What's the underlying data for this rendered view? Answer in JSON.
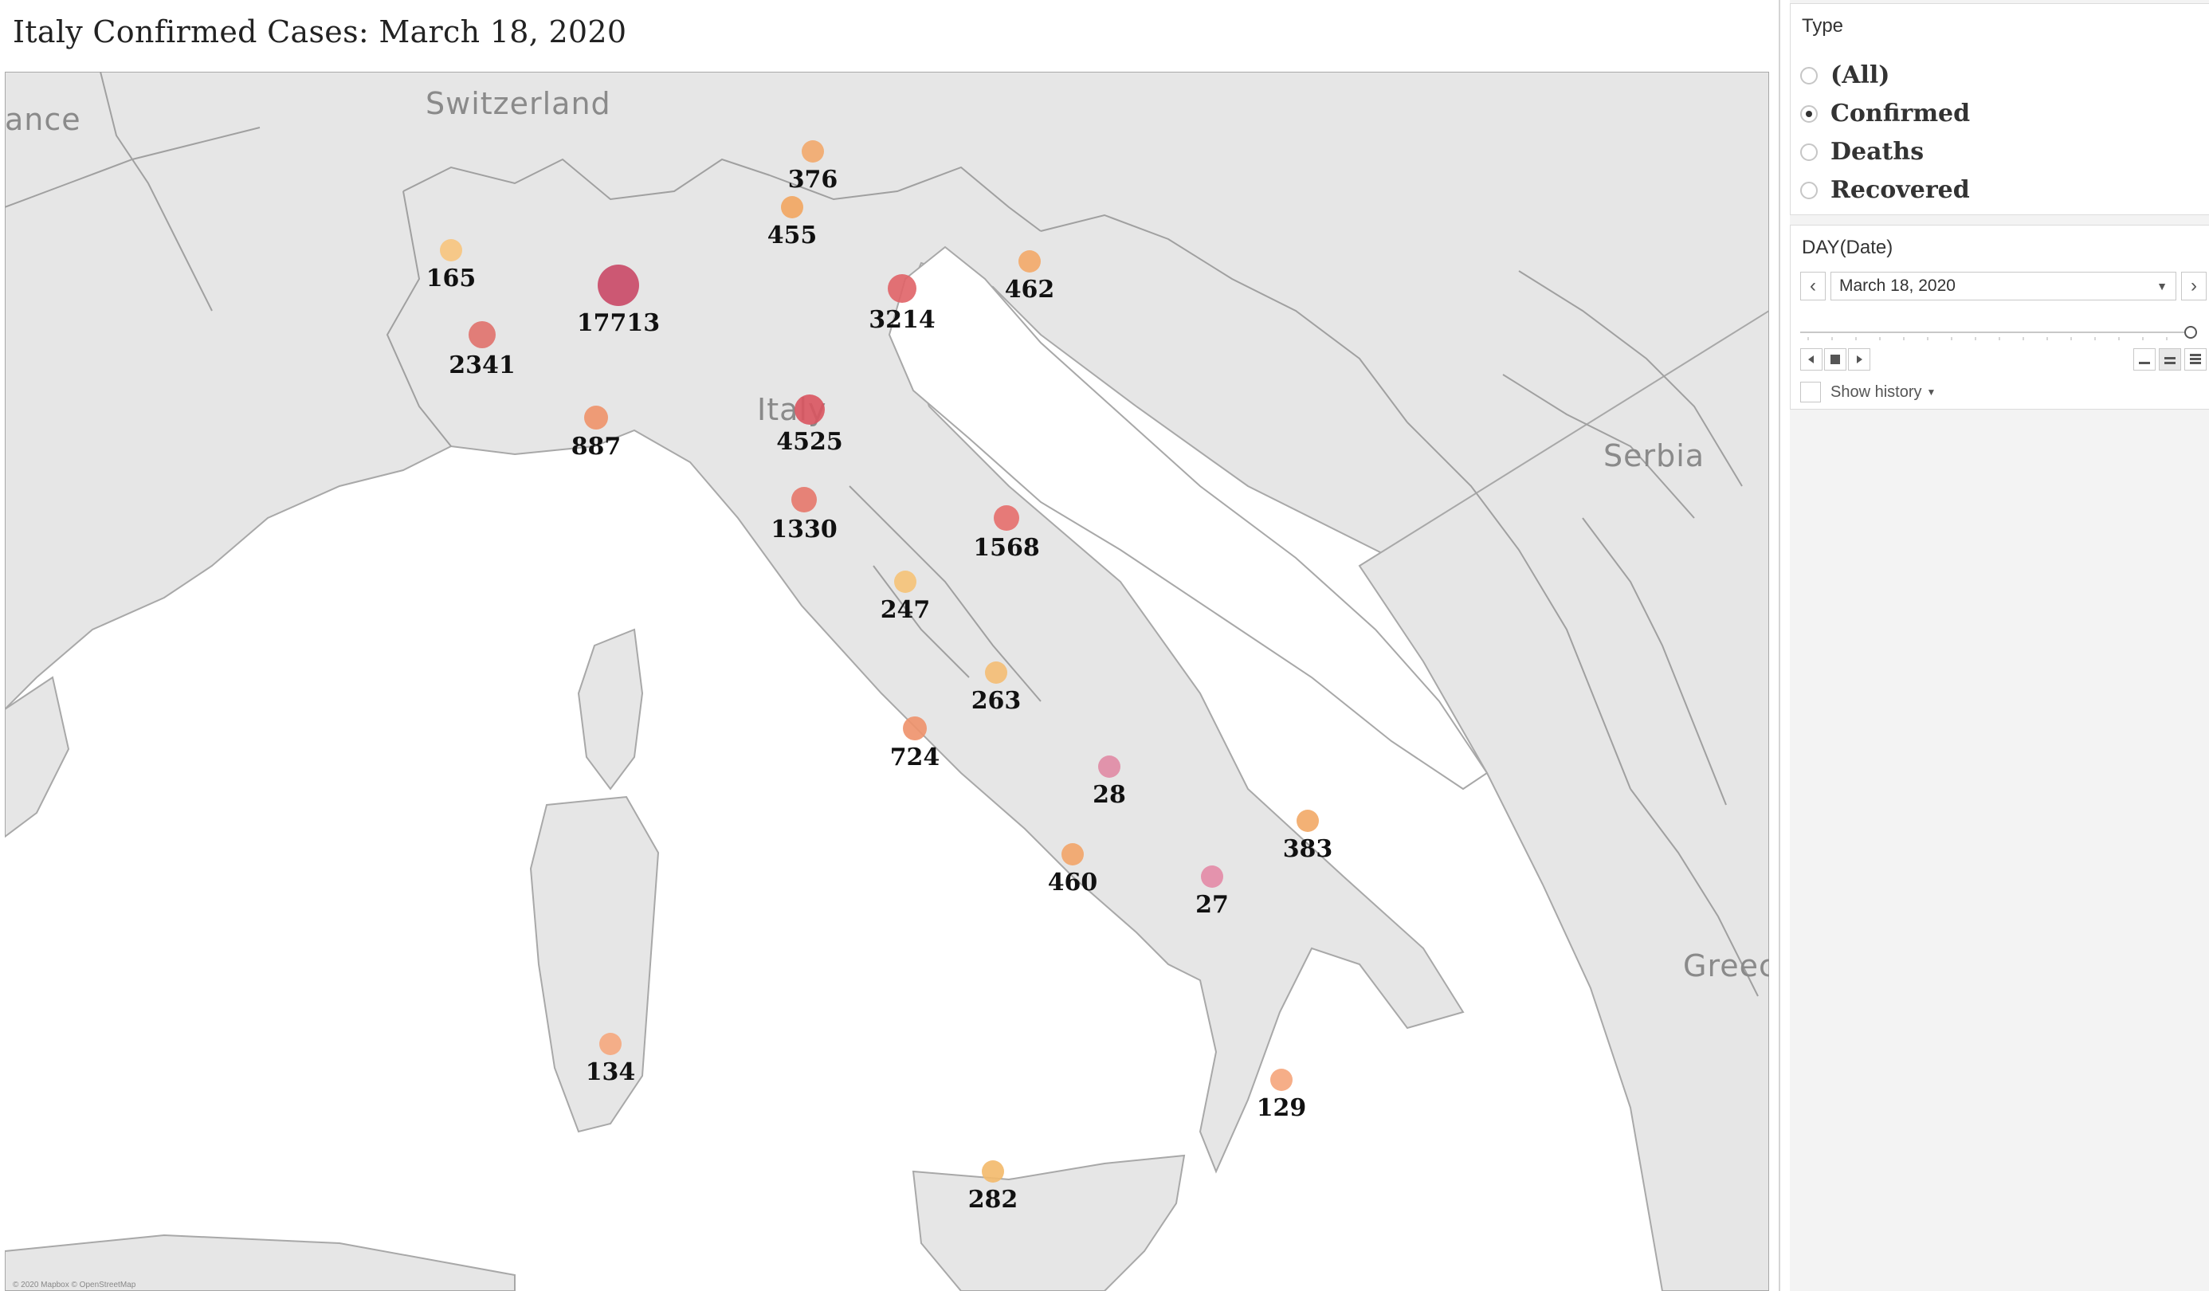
{
  "viz": {
    "title": "Italy Confirmed Cases: March 18, 2020",
    "attribution": "© 2020 Mapbox © OpenStreetMap"
  },
  "map": {
    "country_labels": [
      "ance",
      "Switzerland",
      "Italy",
      "Serbia",
      "Greec"
    ],
    "markers": [
      {
        "label": "376",
        "value": 376,
        "color": "#f2a86b"
      },
      {
        "label": "455",
        "value": 455,
        "color": "#f2a55f"
      },
      {
        "label": "165",
        "value": 165,
        "color": "#f7c47d"
      },
      {
        "label": "17713",
        "value": 17713,
        "color": "#c94866"
      },
      {
        "label": "3214",
        "value": 3214,
        "color": "#e06367"
      },
      {
        "label": "462",
        "value": 462,
        "color": "#f3a968"
      },
      {
        "label": "2341",
        "value": 2341,
        "color": "#e0716b"
      },
      {
        "label": "887",
        "value": 887,
        "color": "#ee9269"
      },
      {
        "label": "4525",
        "value": 4525,
        "color": "#d9545f"
      },
      {
        "label": "1330",
        "value": 1330,
        "color": "#e6776a"
      },
      {
        "label": "1568",
        "value": 1568,
        "color": "#e56e6b"
      },
      {
        "label": "247",
        "value": 247,
        "color": "#f5c277"
      },
      {
        "label": "263",
        "value": 263,
        "color": "#f4bd73"
      },
      {
        "label": "724",
        "value": 724,
        "color": "#ee916a"
      },
      {
        "label": "28",
        "value": 28,
        "color": "#e08aa4"
      },
      {
        "label": "383",
        "value": 383,
        "color": "#f2a866"
      },
      {
        "label": "460",
        "value": 460,
        "color": "#f2a468"
      },
      {
        "label": "27",
        "value": 27,
        "color": "#e38aa6"
      },
      {
        "label": "134",
        "value": 134,
        "color": "#f5a77d"
      },
      {
        "label": "129",
        "value": 129,
        "color": "#f5a57b"
      },
      {
        "label": "282",
        "value": 282,
        "color": "#f3b96a"
      }
    ]
  },
  "filters": {
    "type": {
      "title": "Type",
      "options": [
        "(All)",
        "Confirmed",
        "Deaths",
        "Recovered"
      ],
      "selected": "Confirmed"
    },
    "date": {
      "title": "DAY(Date)",
      "value": "March 18, 2020",
      "show_history_label": "Show history"
    }
  },
  "colors": {
    "land": "#e6e6e6",
    "water": "#ffffff",
    "border": "#9a9a9a"
  }
}
